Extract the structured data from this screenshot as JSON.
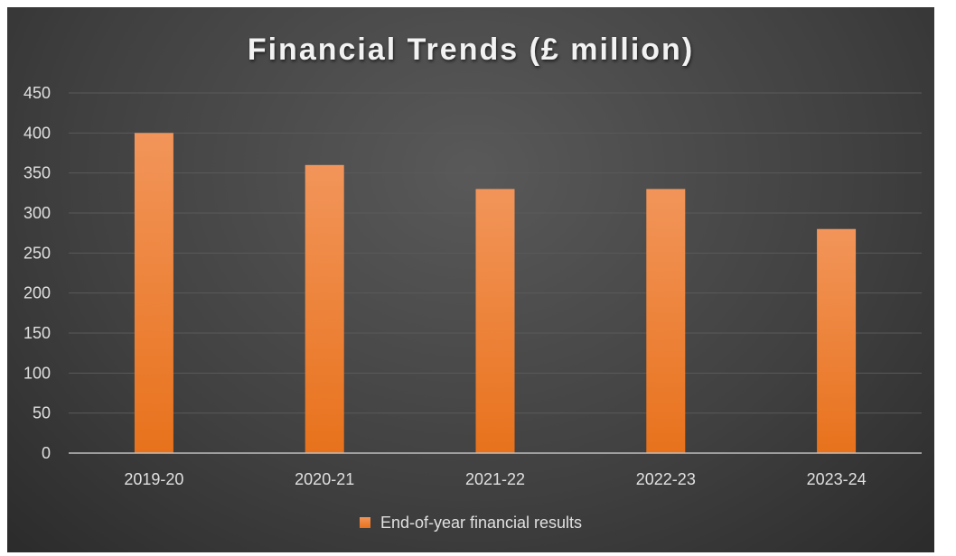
{
  "chart_data": {
    "type": "bar",
    "title": "Financial Trends (£ million)",
    "xlabel": "",
    "ylabel": "",
    "categories": [
      "2019-20",
      "2020-21",
      "2021-22",
      "2022-23",
      "2023-24"
    ],
    "series": [
      {
        "name": "End-of-year financial results",
        "values": [
          400,
          360,
          330,
          330,
          280
        ]
      }
    ],
    "ylim": [
      0,
      450
    ],
    "yticks": [
      0,
      50,
      100,
      150,
      200,
      250,
      300,
      350,
      400,
      450
    ],
    "grid": true,
    "legend_position": "bottom",
    "colors": {
      "background": "#404040",
      "bar_top": "#f2955a",
      "bar_bottom": "#e8721c",
      "grid": "#5a5a5a",
      "axis": "#bfbfbf",
      "text": "#e0e0e0"
    }
  }
}
